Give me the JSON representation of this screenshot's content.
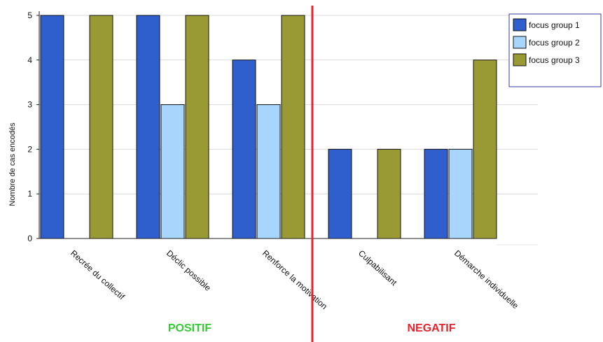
{
  "chart_data": {
    "type": "bar",
    "categories": [
      "Recrée du collectif",
      "Déclic possible",
      "Renforce la motivation",
      "Culpabilisant",
      "Démarche individuelle"
    ],
    "series": [
      {
        "name": "focus group 1",
        "color": "#2f5fcd",
        "values": [
          5,
          5,
          4,
          2,
          2
        ]
      },
      {
        "name": "focus group 2",
        "color": "#a8d5fb",
        "values": [
          0,
          3,
          3,
          0,
          2
        ]
      },
      {
        "name": "focus group 3",
        "color": "#9a9a34",
        "values": [
          5,
          5,
          5,
          2,
          4
        ]
      }
    ],
    "ylabel": "Nombre de cas encodés",
    "ylim": [
      0,
      5
    ],
    "yticks": [
      0,
      1,
      2,
      3,
      4,
      5
    ],
    "grid": true,
    "legend_position": "top-right",
    "divider_color": "#e8222a",
    "groups": [
      {
        "label": "POSITIF",
        "color": "#33cc33"
      },
      {
        "label": "NEGATIF",
        "color": "#e8222a"
      }
    ]
  }
}
